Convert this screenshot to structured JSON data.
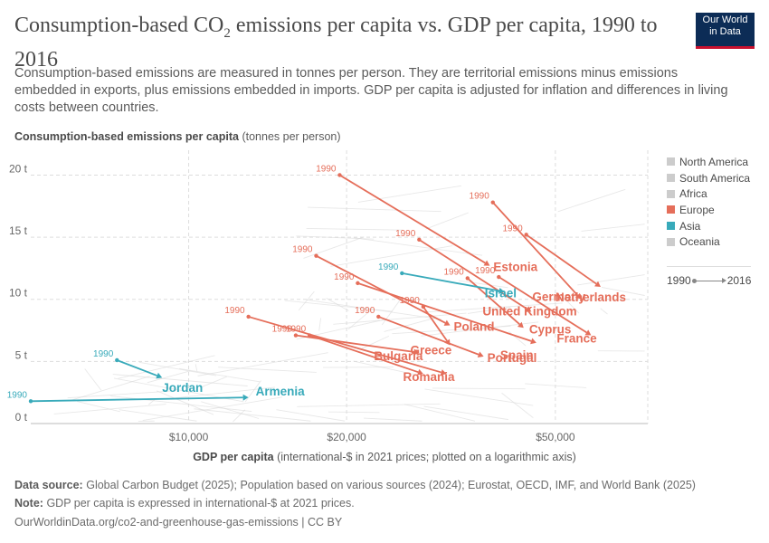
{
  "header": {
    "title_main": "Consumption-based CO",
    "title_sub": "2",
    "title_rest": " emissions per capita vs. GDP per capita, 1990 to 2016",
    "subtitle": "Consumption-based emissions are measured in tonnes per person. They are territorial emissions minus emissions embedded in exports, plus emissions embedded in imports. GDP per capita is adjusted for inflation and differences in living costs between countries.",
    "logo_line1": "Our World",
    "logo_line2": "in Data"
  },
  "axes": {
    "y_title": "Consumption-based emissions per capita",
    "y_unit": "(tonnes per person)",
    "x_title": "GDP per capita",
    "x_unit": "(international-$ in 2021 prices; plotted on a logarithmic axis)"
  },
  "legend": {
    "items": [
      {
        "label": "North America",
        "color": "#cccccc"
      },
      {
        "label": "South America",
        "color": "#cccccc"
      },
      {
        "label": "Africa",
        "color": "#cccccc"
      },
      {
        "label": "Europe",
        "color": "#e56e5a"
      },
      {
        "label": "Asia",
        "color": "#38aaba"
      },
      {
        "label": "Oceania",
        "color": "#cccccc"
      }
    ],
    "start_year": "1990",
    "end_year": "2016"
  },
  "footer": {
    "source_label": "Data source:",
    "source_text": "Global Carbon Budget (2025); Population based on various sources (2024); Eurostat, OECD, IMF, and World Bank (2025)",
    "note_label": "Note:",
    "note_text": "GDP per capita is expressed in international-$ at 2021 prices.",
    "url": "OurWorldinData.org/co2-and-greenhouse-gas-emissions | CC BY"
  },
  "chart_data": {
    "type": "scatter",
    "x_scale": "log",
    "xlim": [
      5000,
      75000
    ],
    "ylim": [
      0,
      22
    ],
    "x_ticks": [
      {
        "value": 10000,
        "label": "$10,000"
      },
      {
        "value": 20000,
        "label": "$20,000"
      },
      {
        "value": 50000,
        "label": "$50,000"
      }
    ],
    "y_ticks": [
      {
        "value": 0,
        "label": "0 t"
      },
      {
        "value": 5,
        "label": "5 t"
      },
      {
        "value": 10,
        "label": "10 t"
      },
      {
        "value": 15,
        "label": "15 t"
      },
      {
        "value": 20,
        "label": "20 t"
      }
    ],
    "grid": true,
    "start_label": "1990",
    "series": [
      {
        "name": "Estonia",
        "region": "Europe",
        "x0": 19400,
        "y0": 20.0,
        "x1": 37500,
        "y1": 12.7
      },
      {
        "name": "Germany",
        "region": "Europe",
        "x0": 38000,
        "y0": 17.8,
        "x1": 56000,
        "y1": 10.0
      },
      {
        "name": "Netherlands",
        "region": "Europe",
        "x0": 44000,
        "y0": 15.2,
        "x1": 61000,
        "y1": 11.0
      },
      {
        "name": "United Kingdom",
        "region": "Europe",
        "x0": 27500,
        "y0": 14.8,
        "x1": 45000,
        "y1": 9.0
      },
      {
        "name": "Poland",
        "region": "Europe",
        "x0": 17500,
        "y0": 13.5,
        "x1": 31500,
        "y1": 7.9
      },
      {
        "name": "Cyprus",
        "region": "Europe",
        "x0": 34000,
        "y0": 11.7,
        "x1": 43500,
        "y1": 7.7
      },
      {
        "name": "France",
        "region": "Europe",
        "x0": 39000,
        "y0": 11.8,
        "x1": 58500,
        "y1": 7.1
      },
      {
        "name": "Greece",
        "region": "Europe",
        "x0": 28000,
        "y0": 9.4,
        "x1": 31500,
        "y1": 6.3
      },
      {
        "name": "Spain",
        "region": "Europe",
        "x0": 21000,
        "y0": 11.3,
        "x1": 46000,
        "y1": 6.5
      },
      {
        "name": "Portugal",
        "region": "Europe",
        "x0": 23000,
        "y0": 8.6,
        "x1": 36500,
        "y1": 5.4
      },
      {
        "name": "Bulgaria",
        "region": "Europe",
        "x0": 16000,
        "y0": 7.1,
        "x1": 27500,
        "y1": 5.7
      },
      {
        "name": "Romania",
        "region": "Europe",
        "x0": 13000,
        "y0": 8.6,
        "x1": 31000,
        "y1": 4.0
      },
      {
        "name": "Romania-2",
        "region": "Europe",
        "x0": 17000,
        "y0": 7.1,
        "x1": 28000,
        "y1": 4.0,
        "hidden_label": true
      },
      {
        "name": "Israel",
        "region": "Asia",
        "x0": 25500,
        "y0": 12.1,
        "x1": 40000,
        "y1": 10.6
      },
      {
        "name": "Jordan",
        "region": "Asia",
        "x0": 7300,
        "y0": 5.1,
        "x1": 8900,
        "y1": 3.7
      },
      {
        "name": "Armenia",
        "region": "Asia",
        "x0": 5000,
        "y0": 1.8,
        "x1": 13000,
        "y1": 2.1
      }
    ],
    "label_texts": {
      "Estonia": "Estonia",
      "Germany": "Germany",
      "Netherlands": "Netherlands",
      "United Kingdom": "United Kingdom",
      "Poland": "Poland",
      "Cyprus": "Cyprus",
      "France": "France",
      "Greece": "Greece",
      "Spain": "Spain",
      "Portugal": "Portugal",
      "Bulgaria": "Bulgaria",
      "Romania": "Romania",
      "Israel": "Israel",
      "Jordan": "Jordan",
      "Armenia": "Armenia"
    }
  }
}
